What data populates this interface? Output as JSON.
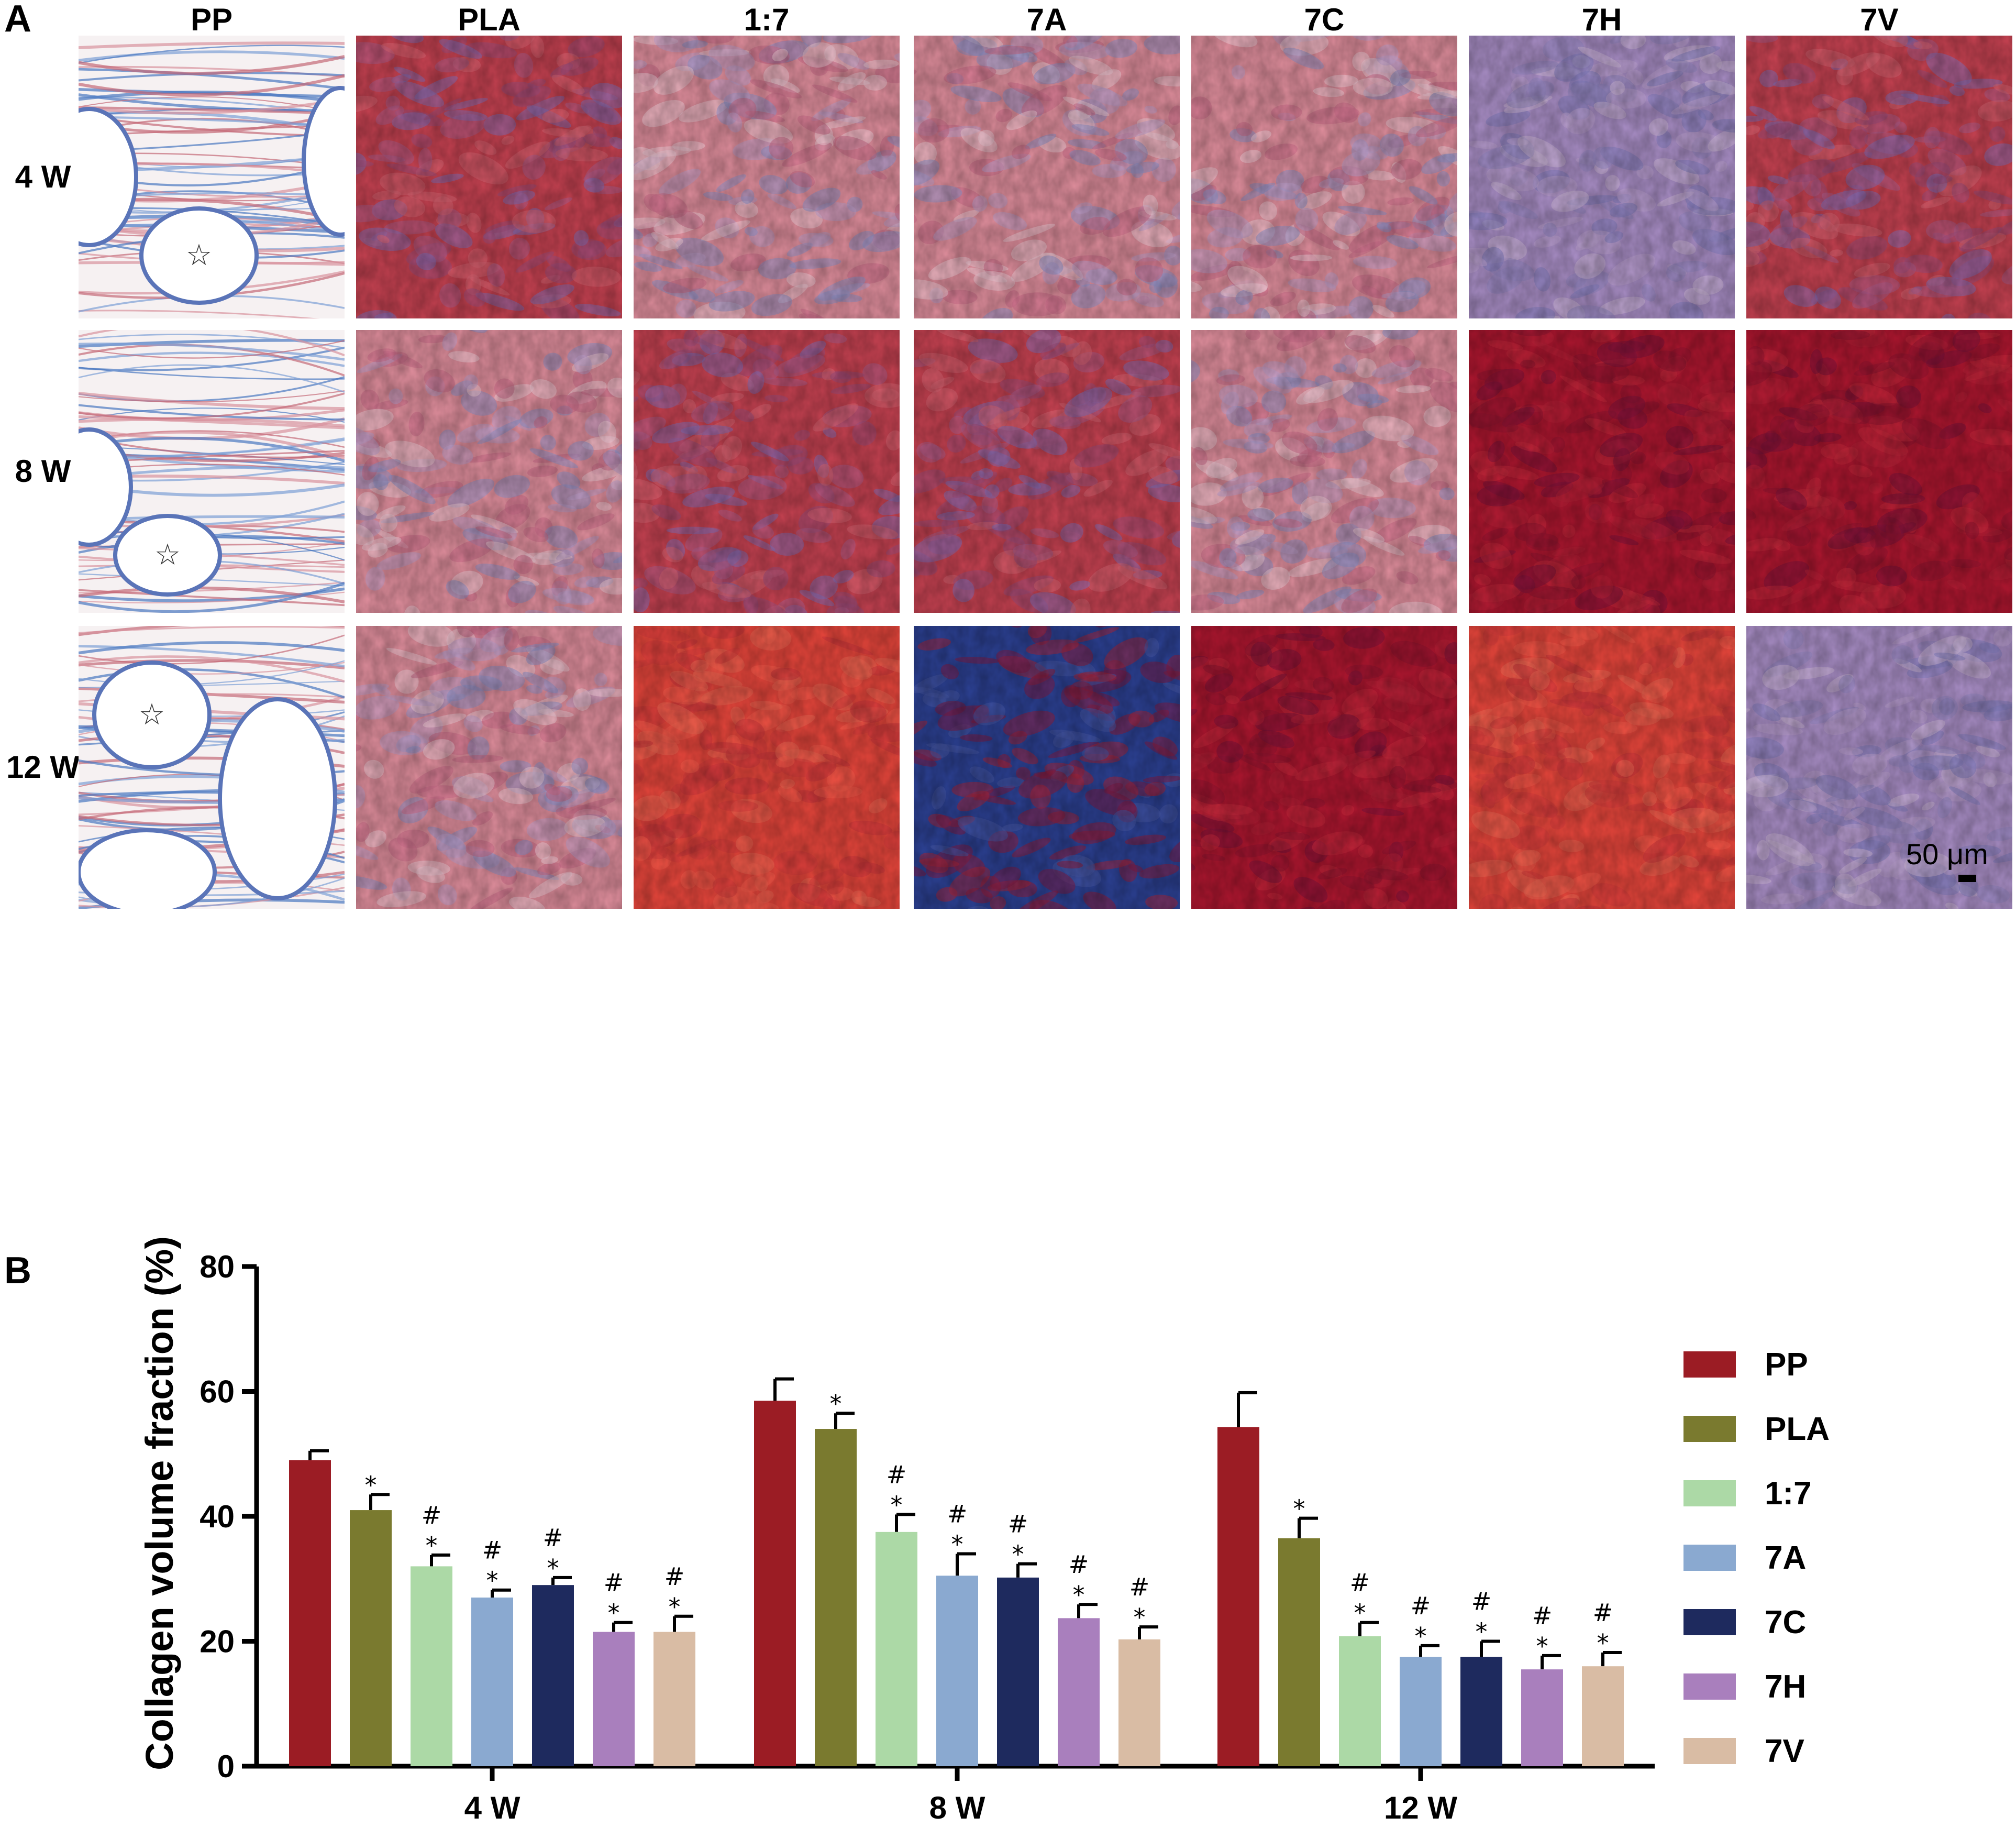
{
  "panel_a": {
    "letter": "A",
    "columns": [
      "PP",
      "PLA",
      "1:7",
      "7A",
      "7C",
      "7H",
      "7V"
    ],
    "rows": [
      "4 W",
      "8 W",
      "12 W"
    ],
    "pore_marker": "☆",
    "scale_bar": "50 μm",
    "tile_palettes": {
      "pink_blue": [
        "#d98a98",
        "#c76a86",
        "#8e8fc4",
        "#b89ac4",
        "#e7c3cd"
      ],
      "red_purple": [
        "#c0404f",
        "#9a4a78",
        "#7f6ab0",
        "#d06070",
        "#a85a86"
      ],
      "deep_red": [
        "#a8162e",
        "#8e1430",
        "#b32036",
        "#7a1238",
        "#c0283a"
      ],
      "bright_red": [
        "#e0443a",
        "#d23a3a",
        "#ee5a48",
        "#c8353a",
        "#e86450"
      ],
      "blue_red": [
        "#2b3f8f",
        "#8a1d3c",
        "#a0243a",
        "#43549e",
        "#7a1c45"
      ],
      "lavender": [
        "#a48ac0",
        "#8f84bc",
        "#b69dc8",
        "#7f7ab8",
        "#c6b0d0"
      ]
    },
    "tiles": [
      [
        "pore",
        "red_purple",
        "pink_blue",
        "pink_blue",
        "pink_blue",
        "lavender",
        "red_purple"
      ],
      [
        "pore",
        "pink_blue",
        "red_purple",
        "red_purple",
        "pink_blue",
        "deep_red",
        "deep_red"
      ],
      [
        "pore",
        "pink_blue",
        "bright_red",
        "blue_red",
        "deep_red",
        "bright_red",
        "lavender"
      ]
    ]
  },
  "panel_b": {
    "letter": "B",
    "chart_data": {
      "type": "bar",
      "title": "",
      "xlabel": "",
      "ylabel": "Collagen volume fraction (%)",
      "ylim": [
        0,
        80
      ],
      "yticks": [
        0,
        20,
        40,
        60,
        80
      ],
      "categories": [
        "4 W",
        "8 W",
        "12 W"
      ],
      "legend_position": "right",
      "series": [
        {
          "name": "PP",
          "color": "#9b1c24",
          "values": [
            49,
            58.5,
            54.3
          ],
          "errors": [
            1.5,
            3.5,
            5.5
          ],
          "marks": [
            "",
            "",
            ""
          ]
        },
        {
          "name": "PLA",
          "color": "#7a7a2f",
          "values": [
            41,
            54,
            36.5
          ],
          "errors": [
            2.5,
            2.5,
            3.2
          ],
          "marks": [
            "*",
            "*",
            "*"
          ]
        },
        {
          "name": "1:7",
          "color": "#acd9a6",
          "values": [
            32,
            37.5,
            20.8
          ],
          "errors": [
            1.8,
            2.8,
            2.2
          ],
          "marks": [
            "#*",
            "#*",
            "#*"
          ]
        },
        {
          "name": "7A",
          "color": "#8aa9d0",
          "values": [
            27,
            30.5,
            17.5
          ],
          "errors": [
            1.2,
            3.5,
            1.8
          ],
          "marks": [
            "#*",
            "#*",
            "#*"
          ]
        },
        {
          "name": "7C",
          "color": "#1e2a5e",
          "values": [
            29,
            30.2,
            17.5
          ],
          "errors": [
            1.2,
            2.2,
            2.5
          ],
          "marks": [
            "#*",
            "#*",
            "#*"
          ]
        },
        {
          "name": "7H",
          "color": "#a97fbd",
          "values": [
            21.5,
            23.7,
            15.5
          ],
          "errors": [
            1.5,
            2.2,
            2.2
          ],
          "marks": [
            "#*",
            "#*",
            "#*"
          ]
        },
        {
          "name": "7V",
          "color": "#d9bca4",
          "values": [
            21.5,
            20.3,
            16
          ],
          "errors": [
            2.5,
            2,
            2.2
          ],
          "marks": [
            "#*",
            "#*",
            "#*"
          ]
        }
      ]
    }
  }
}
